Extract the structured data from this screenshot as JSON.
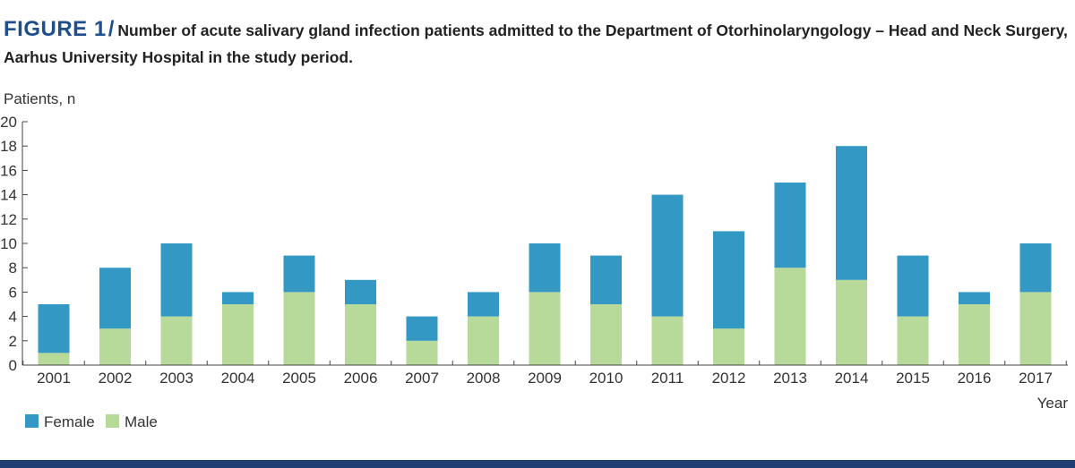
{
  "figure": {
    "label": "FIGURE 1",
    "separator": "/",
    "caption": "Number of acute salivary gland infection patients admitted to the Department of Otorhinolaryngology – Head and Neck Surgery, Aarhus University Hospital in the study period."
  },
  "colors": {
    "female": "#3399c4",
    "male": "#b7d99a",
    "accent": "#1f4e8c",
    "axis": "#444444"
  },
  "chart_data": {
    "type": "bar",
    "stacked": true,
    "title": "",
    "ylabel": "Patients, n",
    "xlabel": "Year",
    "ylim": [
      0,
      20
    ],
    "yticks": [
      0,
      2,
      4,
      6,
      8,
      10,
      12,
      14,
      16,
      18,
      20
    ],
    "categories": [
      "2001",
      "2002",
      "2003",
      "2004",
      "2005",
      "2006",
      "2007",
      "2008",
      "2009",
      "2010",
      "2011",
      "2012",
      "2013",
      "2014",
      "2015",
      "2016",
      "2017"
    ],
    "series": [
      {
        "name": "Male",
        "values": [
          1,
          3,
          4,
          5,
          6,
          5,
          2,
          4,
          6,
          5,
          4,
          3,
          8,
          7,
          4,
          5,
          6
        ]
      },
      {
        "name": "Female",
        "values": [
          4,
          5,
          6,
          1,
          3,
          2,
          2,
          2,
          4,
          4,
          10,
          8,
          7,
          11,
          5,
          1,
          4
        ]
      }
    ],
    "legend": {
      "position": "bottom-left",
      "items": [
        "Female",
        "Male"
      ]
    },
    "grid": false
  }
}
